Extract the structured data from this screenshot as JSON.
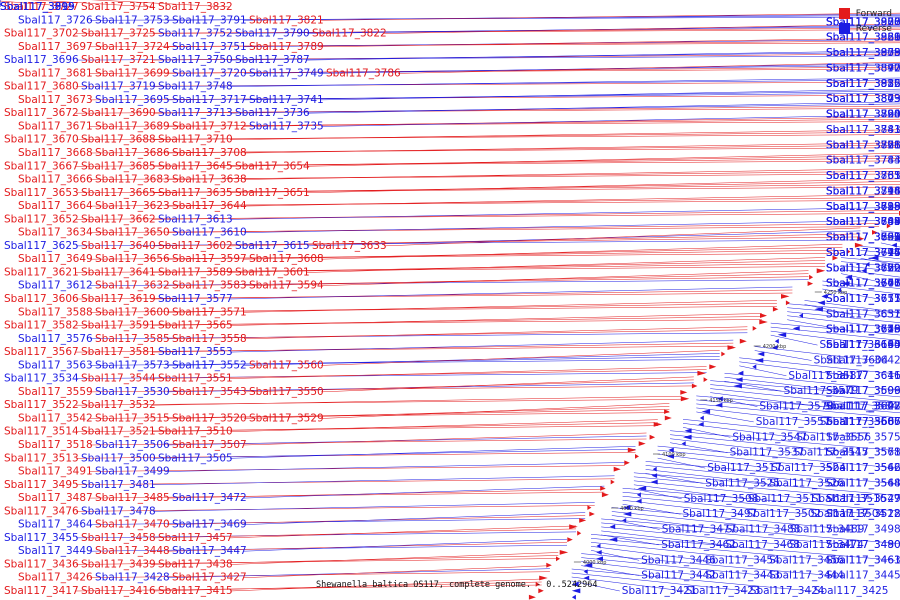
{
  "caption": "Shewanella baltica OS117, complete genome. - 0..5242964",
  "legend": {
    "forward": "Forward",
    "reverse": "Reverse"
  },
  "colors": {
    "forward": "#e31a1c",
    "reverse": "#1c1ce3",
    "backbone": "#555555"
  },
  "ticks": [
    "4500 kbp",
    "4450 kbp",
    "4400 kbp",
    "4350 kbp",
    "4300 kbp",
    "4250 kbp",
    "4200 kbp",
    "4150 kbp",
    "4100 kbp",
    "4050 kbp",
    "4000 kbp"
  ],
  "left_labels": [
    [
      "Sbal117_3727",
      "f"
    ],
    [
      "Sbal117_3754",
      "f"
    ],
    [
      "Sbal117_3832",
      "f"
    ],
    [
      "Sbal117_3726",
      "r"
    ],
    [
      "Sbal117_3753",
      "r"
    ],
    [
      "Sbal117_3791",
      "r"
    ],
    [
      "Sbal117_3821",
      "f"
    ],
    [
      "Sbal117_3702",
      "f"
    ],
    [
      "Sbal117_3725",
      "f"
    ],
    [
      "Sbal117_3752",
      "r"
    ],
    [
      "Sbal117_3790",
      "r"
    ],
    [
      "Sbal117_3822",
      "f"
    ],
    [
      "Sbal117_3697",
      "f"
    ],
    [
      "Sbal117_3724",
      "f"
    ],
    [
      "Sbal117_3751",
      "r"
    ],
    [
      "Sbal117_3789",
      "f"
    ],
    [
      "Sbal117_3696",
      "r"
    ],
    [
      "Sbal117_3721",
      "f"
    ],
    [
      "Sbal117_3750",
      "r"
    ],
    [
      "Sbal117_3787",
      "r"
    ],
    [
      "Sbal117_3681",
      "f"
    ],
    [
      "Sbal117_3699",
      "f"
    ],
    [
      "Sbal117_3720",
      "r"
    ],
    [
      "Sbal117_3749",
      "r"
    ],
    [
      "Sbal117_3786",
      "f"
    ],
    [
      "Sbal117_3680",
      "f"
    ],
    [
      "Sbal117_3719",
      "r"
    ],
    [
      "Sbal117_3748",
      "r"
    ],
    [
      "Sbal117_3673",
      "f"
    ],
    [
      "Sbal117_3695",
      "r"
    ],
    [
      "Sbal117_3717",
      "r"
    ],
    [
      "Sbal117_3741",
      "r"
    ],
    [
      "Sbal117_3672",
      "f"
    ],
    [
      "Sbal117_3690",
      "f"
    ],
    [
      "Sbal117_3713",
      "r"
    ],
    [
      "Sbal117_3736",
      "r"
    ],
    [
      "Sbal117_3671",
      "f"
    ],
    [
      "Sbal117_3689",
      "f"
    ],
    [
      "Sbal117_3712",
      "f"
    ],
    [
      "Sbal117_3735",
      "r"
    ],
    [
      "Sbal117_3670",
      "f"
    ],
    [
      "Sbal117_3688",
      "f"
    ],
    [
      "Sbal117_3710",
      "f"
    ],
    [
      "Sbal117_3668",
      "f"
    ],
    [
      "Sbal117_3686",
      "f"
    ],
    [
      "Sbal117_3708",
      "f"
    ],
    [
      "Sbal117_3667",
      "f"
    ],
    [
      "Sbal117_3685",
      "f"
    ],
    [
      "Sbal117_3645",
      "f"
    ],
    [
      "Sbal117_3654",
      "f"
    ],
    [
      "Sbal117_3666",
      "f"
    ],
    [
      "Sbal117_3683",
      "f"
    ],
    [
      "Sbal117_3638",
      "f"
    ],
    [
      "Sbal117_3653",
      "f"
    ],
    [
      "Sbal117_3665",
      "f"
    ],
    [
      "Sbal117_3635",
      "f"
    ],
    [
      "Sbal117_3651",
      "f"
    ],
    [
      "Sbal117_3664",
      "f"
    ],
    [
      "Sbal117_3623",
      "f"
    ],
    [
      "Sbal117_3644",
      "f"
    ],
    [
      "Sbal117_3652",
      "f"
    ],
    [
      "Sbal117_3662",
      "f"
    ],
    [
      "Sbal117_3613",
      "r"
    ],
    [
      "Sbal117_3634",
      "f"
    ],
    [
      "Sbal117_3650",
      "f"
    ],
    [
      "Sbal117_3610",
      "r"
    ],
    [
      "Sbal117_3625",
      "r"
    ],
    [
      "Sbal117_3640",
      "f"
    ],
    [
      "Sbal117_3602",
      "f"
    ],
    [
      "Sbal117_3615",
      "r"
    ],
    [
      "Sbal117_3633",
      "f"
    ],
    [
      "Sbal117_3649",
      "f"
    ],
    [
      "Sbal117_3656",
      "f"
    ],
    [
      "Sbal117_3597",
      "f"
    ],
    [
      "Sbal117_3608",
      "f"
    ],
    [
      "Sbal117_3621",
      "f"
    ],
    [
      "Sbal117_3641",
      "f"
    ],
    [
      "Sbal117_3589",
      "f"
    ],
    [
      "Sbal117_3601",
      "f"
    ],
    [
      "Sbal117_3612",
      "r"
    ],
    [
      "Sbal117_3632",
      "f"
    ],
    [
      "Sbal117_3583",
      "f"
    ],
    [
      "Sbal117_3594",
      "f"
    ],
    [
      "Sbal117_3606",
      "f"
    ],
    [
      "Sbal117_3619",
      "f"
    ],
    [
      "Sbal117_3577",
      "r"
    ],
    [
      "Sbal117_3588",
      "f"
    ],
    [
      "Sbal117_3600",
      "f"
    ],
    [
      "Sbal117_3571",
      "f"
    ],
    [
      "Sbal117_3582",
      "f"
    ],
    [
      "Sbal117_3591",
      "f"
    ],
    [
      "Sbal117_3565",
      "f"
    ],
    [
      "Sbal117_3576",
      "r"
    ],
    [
      "Sbal117_3585",
      "f"
    ],
    [
      "Sbal117_3558",
      "f"
    ],
    [
      "Sbal117_3567",
      "f"
    ],
    [
      "Sbal117_3581",
      "f"
    ],
    [
      "Sbal117_3553",
      "r"
    ],
    [
      "Sbal117_3563",
      "r"
    ],
    [
      "Sbal117_3573",
      "r"
    ],
    [
      "Sbal117_3552",
      "r"
    ],
    [
      "Sbal117_3560",
      "f"
    ],
    [
      "Sbal117_3534",
      "r"
    ],
    [
      "Sbal117_3544",
      "f"
    ],
    [
      "Sbal117_3551",
      "f"
    ],
    [
      "Sbal117_3559",
      "f"
    ],
    [
      "Sbal117_3530",
      "r"
    ],
    [
      "Sbal117_3543",
      "f"
    ],
    [
      "Sbal117_3550",
      "f"
    ],
    [
      "Sbal117_3522",
      "f"
    ],
    [
      "Sbal117_3532",
      "f"
    ],
    [
      "Sbal117_3542",
      "f"
    ],
    [
      "Sbal117_3515",
      "f"
    ],
    [
      "Sbal117_3520",
      "f"
    ],
    [
      "Sbal117_3529",
      "f"
    ],
    [
      "Sbal117_3514",
      "f"
    ],
    [
      "Sbal117_3521",
      "f"
    ],
    [
      "Sbal117_3510",
      "f"
    ],
    [
      "Sbal117_3518",
      "f"
    ],
    [
      "Sbal117_3506",
      "r"
    ],
    [
      "Sbal117_3507",
      "f"
    ],
    [
      "Sbal117_3513",
      "f"
    ],
    [
      "Sbal117_3500",
      "r"
    ],
    [
      "Sbal117_3505",
      "r"
    ],
    [
      "Sbal117_3491",
      "f"
    ],
    [
      "Sbal117_3499",
      "r"
    ],
    [
      "Sbal117_3495",
      "f"
    ],
    [
      "Sbal117_3481",
      "r"
    ],
    [
      "Sbal117_3487",
      "f"
    ],
    [
      "Sbal117_3485",
      "f"
    ],
    [
      "Sbal117_3472",
      "r"
    ],
    [
      "Sbal117_3476",
      "f"
    ],
    [
      "Sbal117_3478",
      "r"
    ],
    [
      "Sbal117_3464",
      "r"
    ],
    [
      "Sbal117_3470",
      "f"
    ],
    [
      "Sbal117_3469",
      "r"
    ],
    [
      "Sbal117_3455",
      "r"
    ],
    [
      "Sbal117_3458",
      "f"
    ],
    [
      "Sbal117_3457",
      "f"
    ],
    [
      "Sbal117_3449",
      "r"
    ],
    [
      "Sbal117_3448",
      "f"
    ],
    [
      "Sbal117_3447",
      "r"
    ],
    [
      "Sbal117_3436",
      "f"
    ],
    [
      "Sbal117_3439",
      "f"
    ],
    [
      "Sbal117_3438",
      "f"
    ],
    [
      "Sbal117_3426",
      "f"
    ],
    [
      "Sbal117_3428",
      "r"
    ],
    [
      "Sbal117_3427",
      "f"
    ],
    [
      "Sbal117_3417",
      "f"
    ],
    [
      "Sbal117_3416",
      "f"
    ],
    [
      "Sbal117_3415",
      "f"
    ]
  ],
  "right_labels": [
    [
      "Sbal117_3919",
      "r"
    ],
    [
      "Sbal117_3899",
      "r"
    ],
    [
      "Sbal117_3895",
      "r"
    ],
    [
      "Sbal117_3888",
      "r"
    ],
    [
      "Sbal117_3920",
      "r"
    ],
    [
      "Sbal117_3876",
      "r"
    ],
    [
      "Sbal117_3907",
      "r"
    ],
    [
      "Sbal117_3866",
      "r"
    ],
    [
      "Sbal117_3889",
      "r"
    ],
    [
      "Sbal117_3921",
      "r"
    ],
    [
      "Sbal117_3855",
      "r"
    ],
    [
      "Sbal117_3879",
      "r"
    ],
    [
      "Sbal117_3908",
      "r"
    ],
    [
      "Sbal117_3842",
      "r"
    ],
    [
      "Sbal117_3870",
      "r"
    ],
    [
      "Sbal117_3897",
      "r"
    ],
    [
      "Sbal117_3825",
      "r"
    ],
    [
      "Sbal117_3856",
      "r"
    ],
    [
      "Sbal117_3885",
      "r"
    ],
    [
      "Sbal117_3912",
      "r"
    ],
    [
      "Sbal117_3809",
      "r"
    ],
    [
      "Sbal117_3843",
      "r"
    ],
    [
      "Sbal117_3873",
      "r"
    ],
    [
      "Sbal117_3793",
      "r"
    ],
    [
      "Sbal117_3824",
      "r"
    ],
    [
      "Sbal117_3860",
      "r"
    ],
    [
      "Sbal117_3890",
      "r"
    ],
    [
      "Sbal117_3783",
      "r"
    ],
    [
      "Sbal117_3841",
      "r"
    ],
    [
      "Sbal117_3761",
      "r"
    ],
    [
      "Sbal117_3796",
      "r"
    ],
    [
      "Sbal117_3828",
      "r"
    ],
    [
      "Sbal117_3871",
      "r"
    ],
    [
      "Sbal117_3743",
      "r"
    ],
    [
      "Sbal117_3784",
      "r"
    ],
    [
      "Sbal117_3733",
      "r"
    ],
    [
      "Sbal117_3765",
      "r"
    ],
    [
      "Sbal117_3861",
      "r"
    ],
    [
      "Sbal117_3716",
      "r"
    ],
    [
      "Sbal117_3744",
      "r"
    ],
    [
      "Sbal117_3798",
      "r"
    ],
    [
      "Sbal117_3844",
      "r"
    ],
    [
      "Sbal117_3698",
      "r"
    ],
    [
      "Sbal117_3718",
      "r"
    ],
    [
      "Sbal117_3785",
      "r"
    ],
    [
      "Sbal117_3829",
      "r"
    ],
    [
      "Sbal117_3684",
      "r"
    ],
    [
      "Sbal117_3709",
      "r"
    ],
    [
      "Sbal117_3745",
      "r"
    ],
    [
      "Sbal117_3788",
      "r"
    ],
    [
      "Sbal117_3847",
      "r"
    ],
    [
      "Sbal117_3669",
      "r"
    ],
    [
      "Sbal117_3693",
      "r"
    ],
    [
      "Sbal117_3732",
      "r"
    ],
    [
      "Sbal117_3768",
      "r"
    ],
    [
      "Sbal117_3831",
      "r"
    ],
    [
      "Sbal117_3675",
      "r"
    ],
    [
      "Sbal117_3714",
      "r"
    ],
    [
      "Sbal117_3746",
      "r"
    ],
    [
      "Sbal117_3797",
      "r"
    ],
    [
      "Sbal117_3660",
      "r"
    ],
    [
      "Sbal117_3692",
      "r"
    ],
    [
      "Sbal117_3722",
      "r"
    ],
    [
      "Sbal117_3779",
      "r"
    ],
    [
      "Sbal117_3648",
      "r"
    ],
    [
      "Sbal117_3661",
      "r"
    ],
    [
      "Sbal117_3676",
      "r"
    ],
    [
      "Sbal117_3707",
      "r"
    ],
    [
      "Sbal117_3747",
      "r"
    ],
    [
      "Sbal117_3655",
      "r"
    ],
    [
      "Sbal117_3677",
      "r"
    ],
    [
      "Sbal117_3711",
      "r"
    ],
    [
      "Sbal117_3631",
      "r"
    ],
    [
      "Sbal117_3657",
      "r"
    ],
    [
      "Sbal117_3626",
      "r"
    ],
    [
      "Sbal117_3643",
      "r"
    ],
    [
      "Sbal117_3659",
      "r"
    ],
    [
      "Sbal117_3678",
      "r"
    ],
    [
      "Sbal117_3715",
      "r"
    ],
    [
      "Sbal117_3614",
      "r"
    ],
    [
      "Sbal117_3630",
      "r"
    ],
    [
      "Sbal117_3663",
      "r"
    ],
    [
      "Sbal117_3694",
      "r"
    ],
    [
      "Sbal117_3604",
      "r"
    ],
    [
      "Sbal117_3642",
      "r"
    ],
    [
      "Sbal117_3587",
      "r"
    ],
    [
      "Sbal117_3611",
      "r"
    ],
    [
      "Sbal117_3646",
      "r"
    ],
    [
      "Sbal117_3579",
      "r"
    ],
    [
      "Sbal117_3596",
      "r"
    ],
    [
      "Sbal117_3609",
      "r"
    ],
    [
      "Sbal117_3570",
      "r"
    ],
    [
      "Sbal117_3584",
      "r"
    ],
    [
      "Sbal117_3603",
      "r"
    ],
    [
      "Sbal117_3622",
      "r"
    ],
    [
      "Sbal117_3647",
      "r"
    ],
    [
      "Sbal117_3557",
      "r"
    ],
    [
      "Sbal117_3566",
      "r"
    ],
    [
      "Sbal117_3586",
      "r"
    ],
    [
      "Sbal117_3605",
      "r"
    ],
    [
      "Sbal117_3607",
      "r"
    ],
    [
      "Sbal117_3547",
      "r"
    ],
    [
      "Sbal117_3556",
      "r"
    ],
    [
      "Sbal117_3575",
      "r"
    ],
    [
      "Sbal117_3537",
      "r"
    ],
    [
      "Sbal117_3545",
      "r"
    ],
    [
      "Sbal117_3561",
      "r"
    ],
    [
      "Sbal117_3578",
      "r"
    ],
    [
      "Sbal117_3517",
      "r"
    ],
    [
      "Sbal117_3524",
      "r"
    ],
    [
      "Sbal117_3546",
      "r"
    ],
    [
      "Sbal117_3562",
      "r"
    ],
    [
      "Sbal117_3525",
      "r"
    ],
    [
      "Sbal117_3526",
      "r"
    ],
    [
      "Sbal117_3548",
      "r"
    ],
    [
      "Sbal117_3564",
      "r"
    ],
    [
      "Sbal117_3508",
      "r"
    ],
    [
      "Sbal117_3511",
      "r"
    ],
    [
      "Sbal117_3516",
      "r"
    ],
    [
      "Sbal117_3527",
      "r"
    ],
    [
      "Sbal117_3549",
      "r"
    ],
    [
      "Sbal117_3497",
      "r"
    ],
    [
      "Sbal117_3502",
      "r"
    ],
    [
      "Sbal117_3504",
      "r"
    ],
    [
      "Sbal117_3512",
      "r"
    ],
    [
      "Sbal117_3528",
      "r"
    ],
    [
      "Sbal117_3477",
      "r"
    ],
    [
      "Sbal117_3488",
      "r"
    ],
    [
      "Sbal117_3489",
      "r"
    ],
    [
      "Sbal117_3498",
      "r"
    ],
    [
      "Sbal117_3462",
      "r"
    ],
    [
      "Sbal117_3468",
      "r"
    ],
    [
      "Sbal117_3474",
      "r"
    ],
    [
      "Sbal117_3480",
      "r"
    ],
    [
      "Sbal117_3490",
      "r"
    ],
    [
      "Sbal117_3446",
      "r"
    ],
    [
      "Sbal117_3454",
      "r"
    ],
    [
      "Sbal117_3456",
      "r"
    ],
    [
      "Sbal117_3461",
      "r"
    ],
    [
      "Sbal117_3463",
      "r"
    ],
    [
      "Sbal117_3442",
      "r"
    ],
    [
      "Sbal117_3443",
      "r"
    ],
    [
      "Sbal117_3444",
      "r"
    ],
    [
      "Sbal117_3445",
      "r"
    ],
    [
      "Sbal117_3421",
      "r"
    ],
    [
      "Sbal117_3423",
      "r"
    ],
    [
      "Sbal117_3424",
      "r"
    ],
    [
      "Sbal117_3425",
      "r"
    ]
  ]
}
